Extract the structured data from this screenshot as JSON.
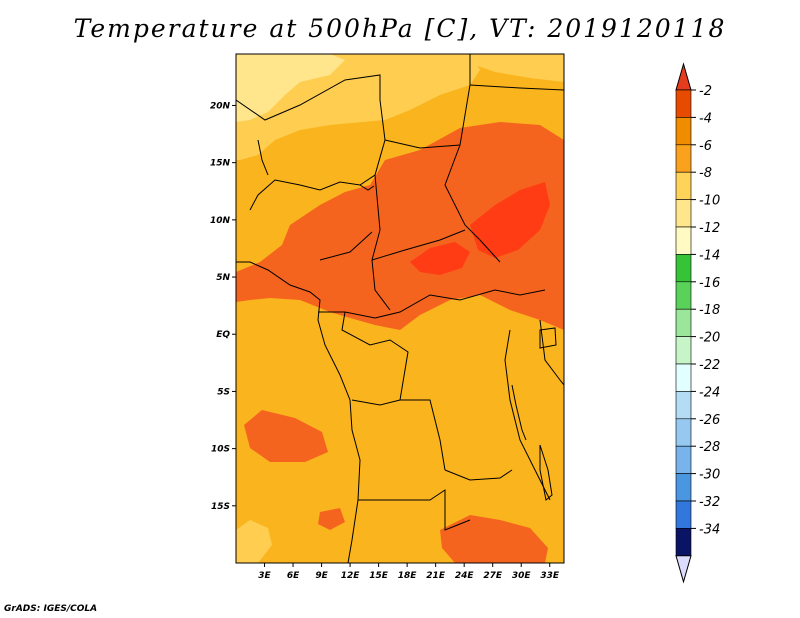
{
  "title": "Temperature at 500hPa [C], VT: 2019120118",
  "credit": "GrADS: IGES/COLA",
  "map": {
    "lon_range": [
      0,
      34.5
    ],
    "lat_range": [
      -20,
      24.5
    ],
    "lat_ticks": [
      {
        "value": 20,
        "label": "20N"
      },
      {
        "value": 15,
        "label": "15N"
      },
      {
        "value": 10,
        "label": "10N"
      },
      {
        "value": 5,
        "label": "5N"
      },
      {
        "value": 0,
        "label": "EQ"
      },
      {
        "value": -5,
        "label": "5S"
      },
      {
        "value": -10,
        "label": "10S"
      },
      {
        "value": -15,
        "label": "15S"
      }
    ],
    "lon_ticks": [
      {
        "value": 3,
        "label": "3E"
      },
      {
        "value": 6,
        "label": "6E"
      },
      {
        "value": 9,
        "label": "9E"
      },
      {
        "value": 12,
        "label": "12E"
      },
      {
        "value": 15,
        "label": "15E"
      },
      {
        "value": 18,
        "label": "18E"
      },
      {
        "value": 21,
        "label": "21E"
      },
      {
        "value": 24,
        "label": "24E"
      },
      {
        "value": 27,
        "label": "27E"
      },
      {
        "value": 30,
        "label": "30E"
      },
      {
        "value": 33,
        "label": "33E"
      }
    ]
  },
  "colorbar": {
    "levels": [
      {
        "label": "-2",
        "color": "#e64b00"
      },
      {
        "label": "-4",
        "color": "#f08c00"
      },
      {
        "label": "-6",
        "color": "#faa21e"
      },
      {
        "label": "-8",
        "color": "#ffd25a"
      },
      {
        "label": "-10",
        "color": "#ffe68c"
      },
      {
        "label": "-12",
        "color": "#fffac3"
      },
      {
        "label": "-14",
        "color": "#37c337"
      },
      {
        "label": "-16",
        "color": "#5ad25a"
      },
      {
        "label": "-18",
        "color": "#9be69b"
      },
      {
        "label": "-20",
        "color": "#c8f5c8"
      },
      {
        "label": "-22",
        "color": "#e1ffff"
      },
      {
        "label": "-24",
        "color": "#b4dcf5"
      },
      {
        "label": "-26",
        "color": "#96c8f0"
      },
      {
        "label": "-28",
        "color": "#78b4eb"
      },
      {
        "label": "-30",
        "color": "#4b96e1"
      },
      {
        "label": "-32",
        "color": "#3278dc"
      },
      {
        "label": "-34",
        "color": "#1e5fcd"
      }
    ],
    "top_color": "#e63c1e",
    "below_colors": [
      "#0a3ca0",
      "#0a1464"
    ],
    "bottom_color": "#dcdcff"
  },
  "field_colors": {
    "warmest": "#ff3c14",
    "warm": "#f5641e",
    "main": "#fab41e",
    "cool": "#ffcd50",
    "coolest": "#ffe68c"
  }
}
